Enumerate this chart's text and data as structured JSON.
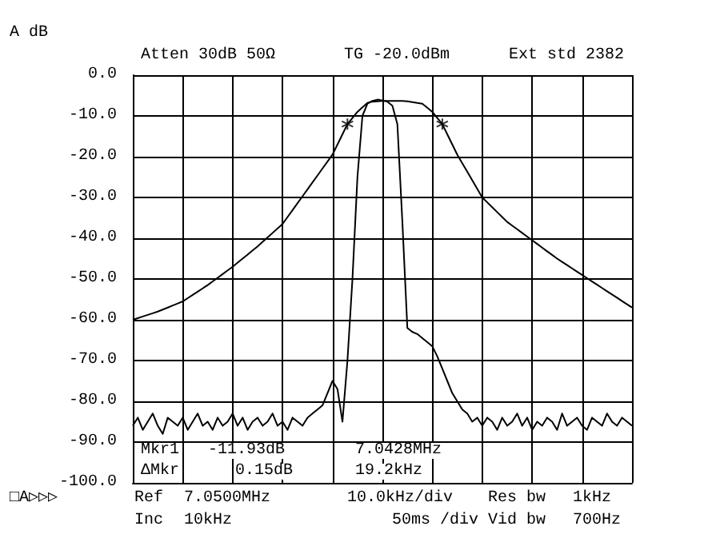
{
  "chart_data": {
    "type": "line",
    "ylabel": "A dB",
    "categories": [
      null,
      null,
      null,
      null,
      null,
      null,
      null,
      null,
      null,
      null,
      null,
      null,
      null,
      null,
      null,
      null,
      null,
      null,
      null,
      null,
      null,
      null,
      null,
      null,
      null,
      null,
      null,
      null,
      null,
      null,
      null,
      null,
      null,
      null,
      null,
      null,
      null,
      null,
      null,
      null,
      null,
      null,
      null,
      null,
      null,
      null,
      null,
      null,
      null,
      null,
      null,
      null,
      null,
      null,
      null,
      null,
      null,
      null,
      null,
      null,
      null,
      null,
      null,
      null,
      null,
      null,
      null,
      null,
      null,
      null,
      null,
      null,
      null,
      null,
      null,
      null,
      null,
      null,
      null,
      null,
      null,
      null,
      null,
      null,
      null,
      null,
      null,
      null,
      null,
      null,
      null,
      null,
      null,
      null,
      null,
      null,
      null,
      null,
      null,
      null,
      null
    ],
    "series": [
      {
        "color": "#000000",
        "values": [
          -86,
          -84,
          -87,
          -85,
          -83,
          -86,
          -88,
          -84,
          -85,
          -86,
          -84,
          -87,
          -85,
          -83,
          -86,
          -85,
          -87,
          -84,
          -86,
          -85,
          -83,
          -86,
          -84,
          -87,
          -85,
          -84,
          -86,
          -85,
          -83,
          -86,
          -85,
          -87,
          -84,
          -85,
          -86,
          -84,
          -83,
          -82,
          -81,
          -78,
          -75,
          -77,
          -85,
          -70,
          -50,
          -25,
          -10,
          -7,
          -6.3,
          -6,
          -6.2,
          -6.5,
          -7.5,
          -12,
          -36,
          -62,
          -63,
          -63.5,
          -64.5,
          -65.5,
          -66.5,
          -69,
          -72,
          -75,
          -78,
          -80,
          -82,
          -83,
          -85,
          -84,
          -86,
          -84,
          -85,
          -87,
          -84,
          -86,
          -85,
          -83,
          -86,
          -84,
          -87,
          -85,
          -86,
          -84,
          -85,
          -87,
          -83,
          -86,
          -85,
          -84,
          -86,
          -87,
          -84,
          -85,
          -86,
          -83,
          -85,
          -86,
          -84,
          -85,
          -86
        ]
      },
      {
        "color": "#000000",
        "values": [
          -60,
          -59.6,
          -59.2,
          -58.8,
          -58.4,
          -58,
          -57.5,
          -57,
          -56.5,
          -56,
          -55.5,
          -54.7,
          -53.9,
          -53.1,
          -52.3,
          -51.5,
          -50.6,
          -49.7,
          -48.8,
          -47.9,
          -47,
          -46,
          -45,
          -44,
          -43,
          -42,
          -40.9,
          -39.8,
          -38.7,
          -37.6,
          -36.5,
          -34.8,
          -33.1,
          -31.4,
          -29.7,
          -28,
          -26.3,
          -24.6,
          -22.9,
          -21.2,
          -19.5,
          -17,
          -14.5,
          -12,
          -10.5,
          -9,
          -7.9,
          -6.8,
          -6.5,
          -6.4,
          -6.3,
          -6.3,
          -6.3,
          -6.3,
          -6.3,
          -6.4,
          -6.6,
          -6.8,
          -7,
          -8,
          -9,
          -10.5,
          -12,
          -14.5,
          -17,
          -19.5,
          -21.6,
          -23.7,
          -25.8,
          -27.9,
          -30,
          -31.2,
          -32.4,
          -33.6,
          -34.8,
          -36,
          -36.9,
          -37.8,
          -38.7,
          -39.6,
          -40.5,
          -41.4,
          -42.3,
          -43.2,
          -44.1,
          -45,
          -45.8,
          -46.6,
          -47.4,
          -48.2,
          -49,
          -49.8,
          -50.6,
          -51.4,
          -52.2,
          -53,
          -53.8,
          -54.6,
          -55.4,
          -56.2,
          -57
        ]
      },
      {
        "type": "scatter",
        "color": "#000000",
        "marker": "cross",
        "values": [
          null,
          null,
          null,
          null,
          null,
          null,
          null,
          null,
          null,
          null,
          null,
          null,
          null,
          null,
          null,
          null,
          null,
          null,
          null,
          null,
          null,
          null,
          null,
          null,
          null,
          null,
          null,
          null,
          null,
          null,
          null,
          null,
          null,
          null,
          null,
          null,
          null,
          null,
          null,
          null,
          null,
          null,
          null,
          -12,
          null,
          null,
          null,
          null,
          null,
          null,
          null,
          null,
          null,
          null,
          null,
          null,
          null,
          null,
          null,
          null,
          null,
          null,
          -12,
          null,
          null,
          null,
          null,
          null,
          null,
          null,
          null,
          null,
          null,
          null,
          null,
          null,
          null,
          null,
          null,
          null,
          null,
          null,
          null,
          null,
          null,
          null,
          null,
          null,
          null,
          null,
          null,
          null,
          null,
          null,
          null,
          null,
          null,
          null,
          null,
          null,
          null
        ]
      }
    ],
    "ylim": [
      -100,
      0
    ],
    "yticks": [
      {
        "value": 0,
        "label": "0.0"
      },
      {
        "value": -10,
        "label": "-10.0"
      },
      {
        "value": -20,
        "label": "-20.0"
      },
      {
        "value": -30,
        "label": "-30.0"
      },
      {
        "value": -40,
        "label": "-40.0"
      },
      {
        "value": -50,
        "label": "-50.0"
      },
      {
        "value": -60,
        "label": "-60.0"
      },
      {
        "value": -70,
        "label": "-70.0"
      },
      {
        "value": -80,
        "label": "-80.0"
      },
      {
        "value": -90,
        "label": "-90.0"
      },
      {
        "value": -100,
        "label": "-100.0"
      }
    ],
    "grid": true,
    "marker": "none",
    "line_style": "solid",
    "annotations": [
      "Atten 30dB 50Ω",
      "TG -20.0dBm",
      "Ext std 2382",
      "Mkr1",
      "-11.93dB",
      "7.0428MHz",
      "ΔMkr",
      "0.15dB",
      "19.2kHz",
      "□A▷▷▷",
      "Ref",
      "7.0500MHz",
      "10.0kHz/div",
      "Res bw",
      "1kHz",
      "Inc",
      "10kHz",
      "50ms /div",
      "Vid bw",
      "700Hz"
    ]
  }
}
